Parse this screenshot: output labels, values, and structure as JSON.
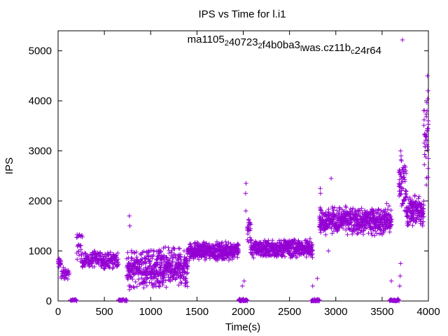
{
  "chart_data": {
    "type": "scatter",
    "title": "IPS vs Time for l.i1",
    "xlabel": "Time(s)",
    "ylabel": "IPS",
    "xlim": [
      0,
      4000
    ],
    "ylim": [
      0,
      5400
    ],
    "xticks": [
      0,
      500,
      1000,
      1500,
      2000,
      2500,
      3000,
      3500,
      4000
    ],
    "yticks": [
      0,
      1000,
      2000,
      3000,
      4000,
      5000
    ],
    "legend_position": "top-right",
    "grid": false,
    "marker": "+",
    "color": "#9400d3",
    "series": [
      {
        "name": "ma1105_2 40723_2 f4b0ba3_l was.cz11b_c 24r64",
        "legend_parts": [
          {
            "text": "ma1105",
            "sub": false
          },
          {
            "text": "2",
            "sub": true
          },
          {
            "text": "40723",
            "sub": false
          },
          {
            "text": "2",
            "sub": true
          },
          {
            "text": "f4b0ba3",
            "sub": false
          },
          {
            "text": "l",
            "sub": true
          },
          {
            "text": "was.cz11b",
            "sub": false
          },
          {
            "text": "c",
            "sub": true
          },
          {
            "text": "24r64",
            "sub": false
          }
        ],
        "segments": [
          {
            "x": [
              0,
              30
            ],
            "center": 750,
            "spread": 120,
            "step": 3
          },
          {
            "x": [
              30,
              120
            ],
            "center": 550,
            "spread": 150,
            "step": 4
          },
          {
            "x": [
              130,
              200
            ],
            "center": 15,
            "spread": 20,
            "step": 6
          },
          {
            "x": [
              200,
              260
            ],
            "center": 1100,
            "spread": 350,
            "step": 3
          },
          {
            "x": [
              260,
              650
            ],
            "center": 820,
            "spread": 200,
            "step": 3
          },
          {
            "x": [
              650,
              740
            ],
            "center": 15,
            "spread": 20,
            "step": 6
          },
          {
            "x": [
              740,
              1400
            ],
            "center": 650,
            "spread": 450,
            "step": 2
          },
          {
            "x": [
              1400,
              1950
            ],
            "center": 1000,
            "spread": 200,
            "step": 2
          },
          {
            "x": [
              1950,
              2040
            ],
            "center": 15,
            "spread": 30,
            "step": 5
          },
          {
            "x": [
              2040,
              2080
            ],
            "center": 1500,
            "spread": 400,
            "step": 3
          },
          {
            "x": [
              2080,
              2750
            ],
            "center": 1050,
            "spread": 200,
            "step": 2
          },
          {
            "x": [
              2730,
              2820
            ],
            "center": 15,
            "spread": 30,
            "step": 5
          },
          {
            "x": [
              2820,
              3600
            ],
            "center": 1600,
            "spread": 300,
            "step": 2
          },
          {
            "x": [
              3580,
              3680
            ],
            "center": 15,
            "spread": 30,
            "step": 5
          },
          {
            "x": [
              3680,
              3760
            ],
            "center": 2300,
            "spread": 600,
            "step": 2
          },
          {
            "x": [
              3760,
              3950
            ],
            "center": 1800,
            "spread": 350,
            "step": 2
          },
          {
            "x": [
              3950,
              4000
            ],
            "center": 3100,
            "spread": 1100,
            "step": 2
          }
        ],
        "outliers": [
          [
            2030,
            2350
          ],
          [
            2025,
            2150
          ],
          [
            2028,
            1800
          ],
          [
            2832,
            2250
          ],
          [
            2835,
            2150
          ],
          [
            2950,
            2450
          ],
          [
            3700,
            3000
          ],
          [
            3705,
            2900
          ],
          [
            3710,
            2800
          ],
          [
            3990,
            4500
          ],
          [
            3995,
            4200
          ],
          [
            3985,
            3800
          ],
          [
            3998,
            3600
          ],
          [
            3980,
            3300
          ],
          [
            3700,
            750
          ],
          [
            3695,
            500
          ],
          [
            3690,
            300
          ],
          [
            770,
            1700
          ],
          [
            775,
            1500
          ],
          [
            2920,
            1000
          ],
          [
            3550,
            1950
          ],
          [
            3575,
            1900
          ],
          [
            2750,
            300
          ],
          [
            2800,
            450
          ],
          [
            3600,
            400
          ],
          [
            1990,
            300
          ],
          [
            2010,
            400
          ]
        ]
      }
    ]
  }
}
